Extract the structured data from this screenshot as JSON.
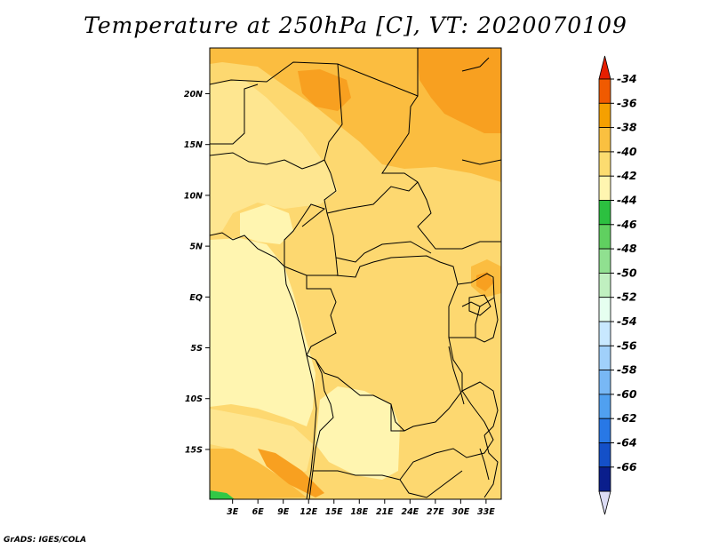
{
  "title": "Temperature at 250hPa [C], VT: 2020070109",
  "credit": "GrADS: IGES/COLA",
  "map": {
    "lat_ticks": [
      "20N",
      "15N",
      "10N",
      "5N",
      "EQ",
      "5S",
      "10S",
      "15S"
    ],
    "lat_values": [
      20,
      15,
      10,
      5,
      0,
      -5,
      -10,
      -15
    ],
    "lon_ticks": [
      "3E",
      "6E",
      "9E",
      "12E",
      "15E",
      "18E",
      "21E",
      "24E",
      "27E",
      "30E",
      "33E"
    ],
    "lon_values": [
      3,
      6,
      9,
      12,
      15,
      18,
      21,
      24,
      27,
      30,
      33
    ],
    "lon_range": [
      0.3,
      34.8
    ],
    "lat_range": [
      -19.9,
      24.5
    ]
  },
  "colorbar": {
    "labels": [
      "-34",
      "-36",
      "-38",
      "-40",
      "-42",
      "-44",
      "-46",
      "-48",
      "-50",
      "-52",
      "-54",
      "-56",
      "-58",
      "-60",
      "-62",
      "-64",
      "-66"
    ],
    "colors": [
      "#f05a00",
      "#f5a000",
      "#fac040",
      "#fcdc70",
      "#fff5b0",
      "#2cc040",
      "#60d060",
      "#90e090",
      "#c0f0c0",
      "#e6fff0",
      "#c8e8ff",
      "#a0d0fa",
      "#78b8f5",
      "#50a0f0",
      "#2878e6",
      "#1450c8",
      "#0a1e8c"
    ],
    "top_arrow_color": "#e61e00",
    "bottom_arrow_color": "#dcdcf5"
  },
  "field_colors": {
    "min44": "#fff5b0",
    "min42": "#fee690",
    "min40": "#fdd870",
    "min38": "#fbbd40",
    "min36": "#f8a020",
    "green": "#32c846"
  }
}
